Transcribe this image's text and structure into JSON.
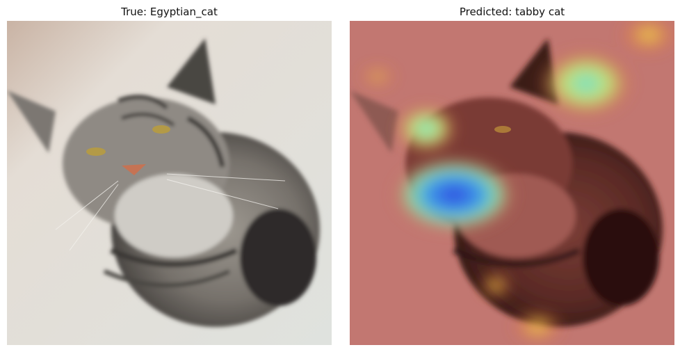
{
  "figure": {
    "left_title": "True: Egyptian_cat",
    "right_title": "Predicted: tabby cat"
  },
  "images": {
    "left": "original photo of a grey striped tabby cat looking up",
    "right": "same photo with a jet-colormap heatmap overlay"
  },
  "colors": {
    "background": "#ffffff",
    "floor": "#d9dcd8",
    "fur": "#8a857f",
    "heat_low": "#d83a2e",
    "heat_mid": "#f2d64a",
    "heat_high": "#3a63e8"
  }
}
